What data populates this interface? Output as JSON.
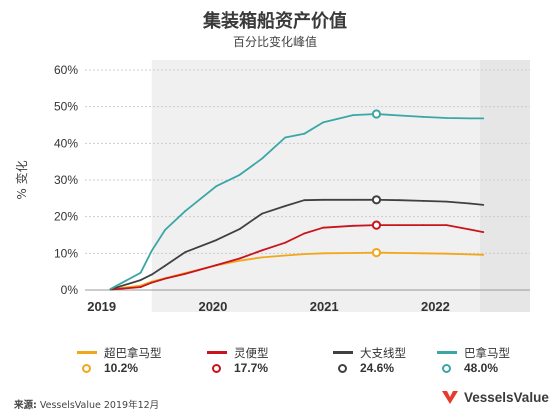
{
  "header": {
    "title": "集装箱船资产价值",
    "subtitle": "百分比变化峰值"
  },
  "source": {
    "label": "来源:",
    "text": "VesselsValue 2019年12月"
  },
  "logo": {
    "text": "VesselsValue",
    "color": "#e8392b"
  },
  "chart_data": {
    "type": "line",
    "title": "集装箱船资产价值",
    "subtitle": "百分比变化峰值",
    "ylabel": "% 变化",
    "xlabel": "",
    "ylim": [
      0,
      60
    ],
    "xlim": [
      2019.0,
      2023.0
    ],
    "y_ticks": [
      0,
      10,
      20,
      30,
      40,
      50,
      60
    ],
    "y_tick_labels": [
      "0%",
      "10%",
      "20%",
      "30%",
      "40%",
      "50%",
      "60%"
    ],
    "x_tick_labels": [
      "2019",
      "2020",
      "2021",
      "2022"
    ],
    "x_tick_positions": [
      2019.15,
      2020.15,
      2021.15,
      2022.15
    ],
    "grid": "horizontal",
    "shaded_bands": [
      {
        "from": 2019.6,
        "to": 2022.55,
        "fill": "#f0f0f0"
      },
      {
        "from": 2022.55,
        "to": 2023.0,
        "fill": "#e6e6e6"
      }
    ],
    "x": [
      2019.23,
      2019.5,
      2019.6,
      2019.72,
      2019.9,
      2020.18,
      2020.39,
      2020.59,
      2020.8,
      2020.97,
      2021.14,
      2021.41,
      2021.62,
      2021.83,
      2022.04,
      2022.25,
      2022.46,
      2022.58
    ],
    "series": [
      {
        "name": "超巴拿马型",
        "color": "#f2a71b",
        "peak_label": "10.2%",
        "peak_index": 12,
        "values": [
          0.2,
          1.2,
          2.3,
          3.2,
          4.6,
          6.7,
          8.0,
          8.9,
          9.4,
          9.8,
          10.0,
          10.1,
          10.2,
          10.1,
          10.0,
          9.9,
          9.7,
          9.6
        ]
      },
      {
        "name": "灵便型",
        "color": "#c8141c",
        "peak_label": "17.7%",
        "peak_index": 12,
        "values": [
          0.1,
          0.8,
          2.0,
          3.1,
          4.4,
          6.8,
          8.6,
          10.8,
          12.9,
          15.4,
          17.0,
          17.5,
          17.7,
          17.7,
          17.7,
          17.7,
          16.5,
          15.8
        ]
      },
      {
        "name": "大支线型",
        "color": "#404040",
        "peak_label": "24.6%",
        "peak_index": 12,
        "values": [
          0.2,
          2.7,
          4.2,
          6.6,
          10.3,
          13.6,
          16.6,
          20.8,
          22.9,
          24.5,
          24.6,
          24.6,
          24.6,
          24.5,
          24.3,
          24.1,
          23.6,
          23.2
        ]
      },
      {
        "name": "巴拿马型",
        "color": "#3aa6a6",
        "peak_label": "48.0%",
        "peak_index": 12,
        "values": [
          0.3,
          4.7,
          10.7,
          16.4,
          21.5,
          28.3,
          31.4,
          35.8,
          41.6,
          42.6,
          45.7,
          47.7,
          48.0,
          47.6,
          47.2,
          46.9,
          46.8,
          46.8
        ]
      }
    ],
    "legend": {
      "placement": "bottom"
    }
  }
}
